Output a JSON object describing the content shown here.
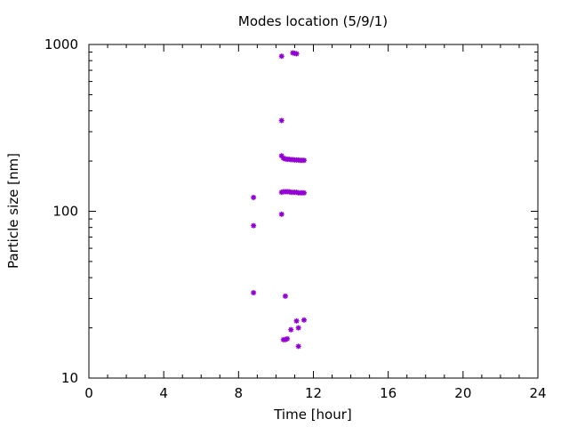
{
  "chart_data": {
    "type": "scatter",
    "title": "Modes location (5/9/1)",
    "xlabel": "Time [hour]",
    "ylabel": "Particle size [nm]",
    "xlim": [
      0,
      24
    ],
    "ylim": [
      10,
      1000
    ],
    "yscale": "log",
    "x_ticks": [
      0,
      4,
      8,
      12,
      16,
      20,
      24
    ],
    "x_tick_labels": [
      "0",
      "4",
      "8",
      "12",
      "16",
      "20",
      "24"
    ],
    "y_ticks": [
      10,
      100,
      1000
    ],
    "y_tick_labels": [
      "10",
      "100",
      "1000"
    ],
    "grid": false,
    "marker_color": "#9400d3",
    "series": [
      {
        "points": [
          {
            "x": 8.8,
            "y": 121
          },
          {
            "x": 8.8,
            "y": 82
          },
          {
            "x": 8.8,
            "y": 32.5
          },
          {
            "x": 10.3,
            "y": 850
          },
          {
            "x": 10.3,
            "y": 350
          },
          {
            "x": 10.3,
            "y": 215
          },
          {
            "x": 10.3,
            "y": 96
          },
          {
            "x": 10.3,
            "y": 130
          },
          {
            "x": 10.4,
            "y": 208
          },
          {
            "x": 10.4,
            "y": 131
          },
          {
            "x": 10.5,
            "y": 206
          },
          {
            "x": 10.5,
            "y": 131
          },
          {
            "x": 10.5,
            "y": 31
          },
          {
            "x": 10.6,
            "y": 205
          },
          {
            "x": 10.6,
            "y": 131
          },
          {
            "x": 10.7,
            "y": 205
          },
          {
            "x": 10.7,
            "y": 131
          },
          {
            "x": 10.8,
            "y": 204
          },
          {
            "x": 10.8,
            "y": 130
          },
          {
            "x": 10.9,
            "y": 204
          },
          {
            "x": 10.9,
            "y": 130
          },
          {
            "x": 11.0,
            "y": 203
          },
          {
            "x": 11.0,
            "y": 130
          },
          {
            "x": 11.1,
            "y": 203
          },
          {
            "x": 11.1,
            "y": 130
          },
          {
            "x": 11.2,
            "y": 203
          },
          {
            "x": 11.2,
            "y": 129
          },
          {
            "x": 11.3,
            "y": 202
          },
          {
            "x": 11.3,
            "y": 129
          },
          {
            "x": 11.4,
            "y": 202
          },
          {
            "x": 11.4,
            "y": 129
          },
          {
            "x": 11.5,
            "y": 202
          },
          {
            "x": 11.5,
            "y": 129
          },
          {
            "x": 10.9,
            "y": 890
          },
          {
            "x": 11.0,
            "y": 885
          },
          {
            "x": 11.1,
            "y": 880
          },
          {
            "x": 10.4,
            "y": 17
          },
          {
            "x": 10.5,
            "y": 17
          },
          {
            "x": 10.6,
            "y": 17.2
          },
          {
            "x": 10.8,
            "y": 19.5
          },
          {
            "x": 11.1,
            "y": 22
          },
          {
            "x": 11.2,
            "y": 20
          },
          {
            "x": 11.2,
            "y": 15.5
          },
          {
            "x": 11.5,
            "y": 22.3
          }
        ]
      }
    ]
  }
}
